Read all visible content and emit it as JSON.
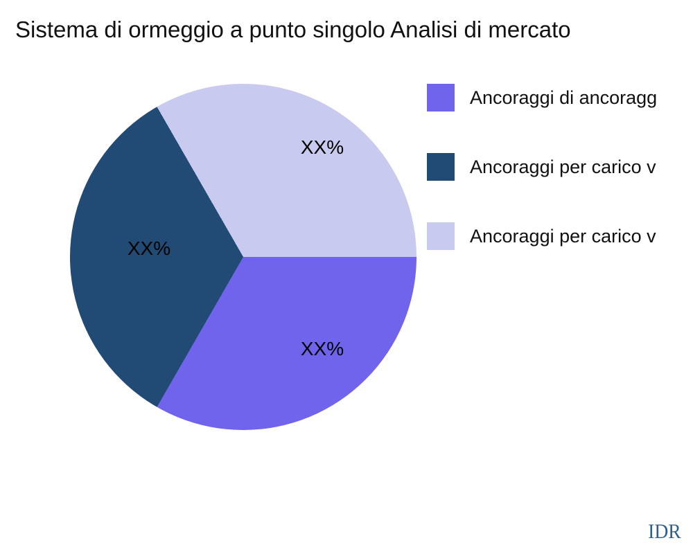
{
  "title": "Sistema di ormeggio a punto singolo Analisi di mercato",
  "chart_data": {
    "type": "pie",
    "title": "Sistema di ormeggio a punto singolo Analisi di mercato",
    "legend_position": "right",
    "start_angle_deg": 0,
    "direction": "clockwise",
    "slices": [
      {
        "label": "Ancoraggi di ancoragg",
        "value": 33.3,
        "display_label": "XX%",
        "color": "#7164EC"
      },
      {
        "label": "Ancoraggi per carico v",
        "value": 33.4,
        "display_label": "XX%",
        "color": "#214B74"
      },
      {
        "label": "Ancoraggi per carico v",
        "value": 33.3,
        "display_label": "XX%",
        "color": "#C9CAEF"
      }
    ]
  },
  "footer": {
    "watermark": "IDR"
  }
}
